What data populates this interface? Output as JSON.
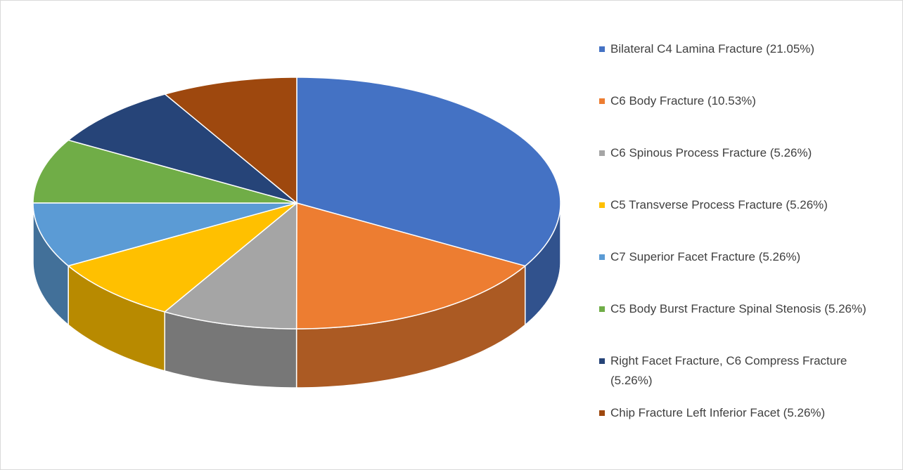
{
  "chart_data": {
    "type": "pie3d",
    "categories": [
      "Bilateral C4 Lamina Fracture (21.05%)",
      "C6 Body Fracture (10.53%)",
      "C6 Spinous Process Fracture (5.26%)",
      "C5 Transverse Process Fracture (5.26%)",
      "C7 Superior Facet Fracture (5.26%)",
      "C5 Body Burst Fracture Spinal Stenosis (5.26%)",
      "Right Facet Fracture, C6 Compress Fracture (5.26%)",
      "Chip Fracture Left Inferior Facet (5.26%)"
    ],
    "values": [
      21.05,
      10.53,
      5.26,
      5.26,
      5.26,
      5.26,
      5.26,
      5.26
    ],
    "colors": [
      "#4472c4",
      "#ed7d31",
      "#a5a5a5",
      "#ffc000",
      "#5b9bd5",
      "#70ad47",
      "#264478",
      "#9e480e"
    ],
    "legend": "right"
  }
}
